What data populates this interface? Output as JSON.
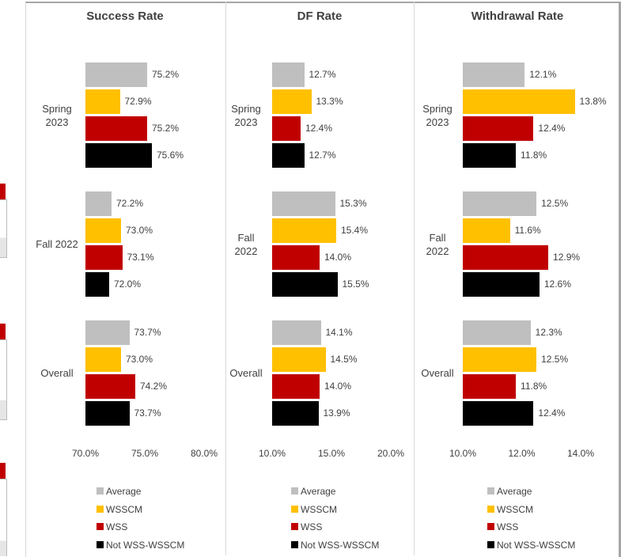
{
  "chart_data": [
    {
      "type": "bar",
      "orientation": "horizontal",
      "title": "Success Rate",
      "categories": [
        "Spring 2023",
        "Fall 2022",
        "Overall"
      ],
      "series": [
        {
          "name": "Average",
          "color": "#bfbfbf",
          "values": [
            75.2,
            72.2,
            73.7
          ],
          "value_labels": [
            "75.2%",
            "72.2%",
            "73.7%"
          ]
        },
        {
          "name": "WSSCM",
          "color": "#ffc000",
          "values": [
            72.9,
            73.0,
            73.0
          ],
          "value_labels": [
            "72.9%",
            "73.0%",
            "73.0%"
          ]
        },
        {
          "name": "WSS",
          "color": "#c00000",
          "values": [
            75.2,
            73.1,
            74.2
          ],
          "value_labels": [
            "75.2%",
            "73.1%",
            "74.2%"
          ]
        },
        {
          "name": "Not WSS-WSSCM",
          "color": "#000000",
          "values": [
            75.6,
            72.0,
            73.7
          ],
          "value_labels": [
            "75.6%",
            "72.0%",
            "73.7%"
          ]
        }
      ],
      "xlim": [
        70,
        80
      ],
      "xticks": [
        {
          "value": 70,
          "label": "70.0%"
        },
        {
          "value": 75,
          "label": "75.0%"
        },
        {
          "value": 80,
          "label": "80.0%"
        }
      ],
      "legend": "bottom"
    },
    {
      "type": "bar",
      "orientation": "horizontal",
      "title": "DF Rate",
      "categories": [
        "Spring 2023",
        "Fall 2022",
        "Overall"
      ],
      "series": [
        {
          "name": "Average",
          "color": "#bfbfbf",
          "values": [
            12.7,
            15.3,
            14.1
          ],
          "value_labels": [
            "12.7%",
            "15.3%",
            "14.1%"
          ]
        },
        {
          "name": "WSSCM",
          "color": "#ffc000",
          "values": [
            13.3,
            15.4,
            14.5
          ],
          "value_labels": [
            "13.3%",
            "15.4%",
            "14.5%"
          ]
        },
        {
          "name": "WSS",
          "color": "#c00000",
          "values": [
            12.4,
            14.0,
            14.0
          ],
          "value_labels": [
            "12.4%",
            "14.0%",
            "14.0%"
          ]
        },
        {
          "name": "Not WSS-WSSCM",
          "color": "#000000",
          "values": [
            12.7,
            15.5,
            13.9
          ],
          "value_labels": [
            "12.7%",
            "15.5%",
            "13.9%"
          ]
        }
      ],
      "xlim": [
        10,
        20
      ],
      "xticks": [
        {
          "value": 10,
          "label": "10.0%"
        },
        {
          "value": 15,
          "label": "15.0%"
        },
        {
          "value": 20,
          "label": "20.0%"
        }
      ],
      "legend": "bottom"
    },
    {
      "type": "bar",
      "orientation": "horizontal",
      "title": "Withdrawal Rate",
      "categories": [
        "Spring 2023",
        "Fall 2022",
        "Overall"
      ],
      "series": [
        {
          "name": "Average",
          "color": "#bfbfbf",
          "values": [
            12.1,
            12.5,
            12.3
          ],
          "value_labels": [
            "12.1%",
            "12.5%",
            "12.3%"
          ]
        },
        {
          "name": "WSSCM",
          "color": "#ffc000",
          "values": [
            13.8,
            11.6,
            12.5
          ],
          "value_labels": [
            "13.8%",
            "11.6%",
            "12.5%"
          ]
        },
        {
          "name": "WSS",
          "color": "#c00000",
          "values": [
            12.4,
            12.9,
            11.8
          ],
          "value_labels": [
            "12.4%",
            "12.9%",
            "11.8%"
          ]
        },
        {
          "name": "Not WSS-WSSCM",
          "color": "#000000",
          "values": [
            11.8,
            12.6,
            12.4
          ],
          "value_labels": [
            "11.8%",
            "12.6%",
            "12.4%"
          ]
        }
      ],
      "xlim": [
        10,
        14
      ],
      "xticks": [
        {
          "value": 10,
          "label": "10.0%"
        },
        {
          "value": 12,
          "label": "12.0%"
        },
        {
          "value": 14,
          "label": "14.0%"
        }
      ],
      "legend": "bottom"
    }
  ]
}
